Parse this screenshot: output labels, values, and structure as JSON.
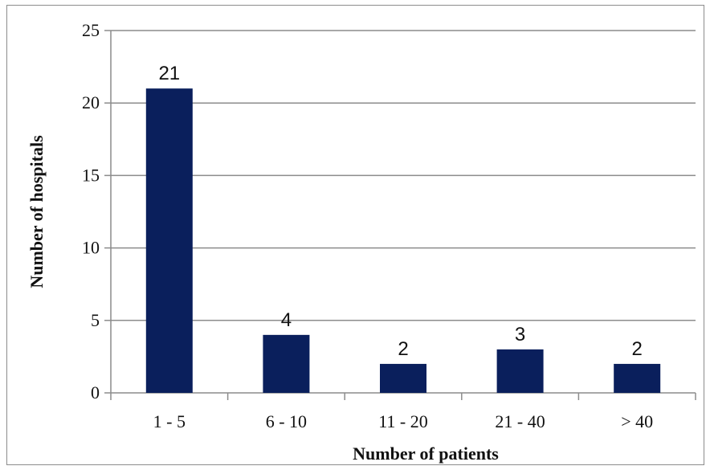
{
  "chart_data": {
    "type": "bar",
    "categories": [
      "1 - 5",
      "6 - 10",
      "11 - 20",
      "21 - 40",
      "> 40"
    ],
    "values": [
      21,
      4,
      2,
      3,
      2
    ],
    "data_labels": [
      "21",
      "4",
      "2",
      "3",
      "2"
    ],
    "xlabel": "Number of patients",
    "ylabel": "Number of hospitals",
    "ylim": [
      0,
      25
    ],
    "yticks": [
      0,
      5,
      10,
      15,
      20,
      25
    ],
    "ytick_labels": [
      "0",
      "5",
      "10",
      "15",
      "20",
      "25"
    ],
    "grid": true,
    "bar_color": "#0a1f5c",
    "grid_color": "#8c8c8c"
  }
}
